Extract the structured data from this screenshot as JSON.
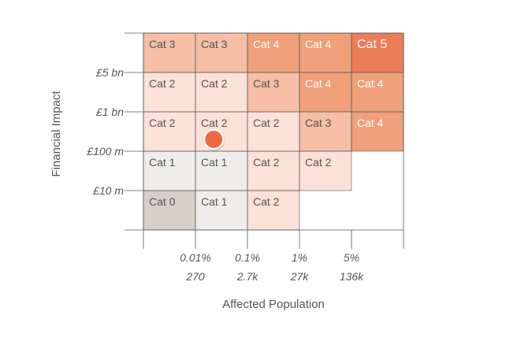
{
  "chart_data": {
    "type": "heatmap",
    "title": "",
    "xlabel": "Affected Population",
    "ylabel": "Financial Impact",
    "x_ticks": [
      {
        "pct": "0.01%",
        "count": "270"
      },
      {
        "pct": "0.1%",
        "count": "2.7k"
      },
      {
        "pct": "1%",
        "count": "27k"
      },
      {
        "pct": "5%",
        "count": "136k"
      }
    ],
    "y_ticks": [
      "£5 bn",
      "£1 bn",
      "£100 m",
      "£10 m"
    ],
    "grid_rows": [
      [
        "Cat 3",
        "Cat 3",
        "Cat 4",
        "Cat 4",
        "Cat 5"
      ],
      [
        "Cat 2",
        "Cat 2",
        "Cat 3",
        "Cat 4",
        "Cat 4"
      ],
      [
        "Cat 2",
        "Cat 2",
        "Cat 2",
        "Cat 3",
        "Cat 4"
      ],
      [
        "Cat 1",
        "Cat 1",
        "Cat 2",
        "Cat 2",
        ""
      ],
      [
        "Cat 0",
        "Cat 1",
        "Cat 2",
        "",
        ""
      ]
    ],
    "category_colors": {
      "Cat 0": "#d7d0c8",
      "Cat 1": "#efedeb",
      "Cat 2": "#fbe1d7",
      "Cat 3": "#f5bea5",
      "Cat 4": "#f0a07a",
      "Cat 5": "#ed7d57"
    },
    "marker": {
      "row": 2,
      "col_position": 1.2,
      "row_position": 0.7,
      "color": "#ee6a43",
      "note": "marker position expressed in grid units (column/row index space)"
    }
  }
}
